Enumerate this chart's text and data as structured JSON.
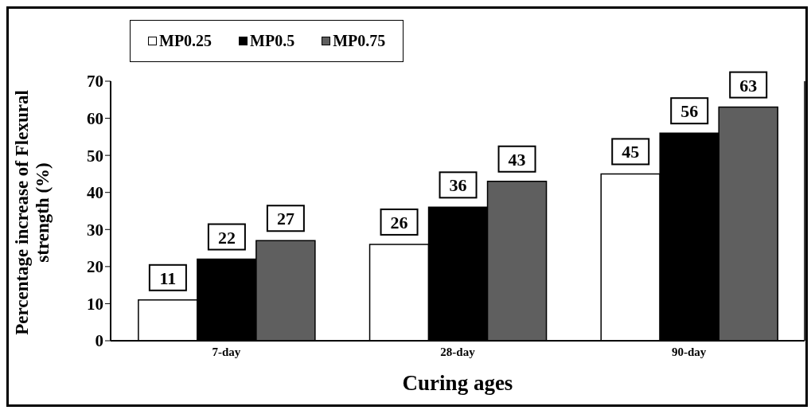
{
  "chart_data": {
    "type": "bar",
    "xlabel": "Curing ages",
    "ylabel": "Percentage increase of Flexural strength (%)",
    "categories": [
      "7-day",
      "28-day",
      "90-day"
    ],
    "series": [
      {
        "name": "MP0.25",
        "color": "#ffffff",
        "values": [
          11,
          26,
          45
        ]
      },
      {
        "name": "MP0.5",
        "color": "#000000",
        "values": [
          22,
          36,
          56
        ]
      },
      {
        "name": "MP0.75",
        "color": "#5f5f5f",
        "values": [
          27,
          43,
          63
        ]
      }
    ],
    "ylim": [
      0,
      70
    ],
    "yticks": [
      0,
      10,
      20,
      30,
      40,
      50,
      60,
      70
    ],
    "grid": false,
    "legend": "top left",
    "data_labels": true
  }
}
